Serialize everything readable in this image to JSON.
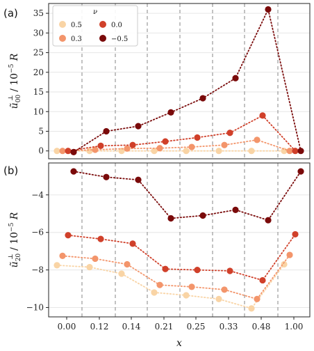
{
  "chart_data": {
    "type": "scatter",
    "xlabel": "x",
    "x_categories": [
      "0.00",
      "0.12",
      "0.14",
      "0.21",
      "0.25",
      "0.33",
      "0.48",
      "1.00"
    ],
    "legend": {
      "title": "ν",
      "placement": "top-left",
      "columns": 2
    },
    "series_styles": [
      {
        "name": "0.5",
        "color": "#f9d4a5"
      },
      {
        "name": "0.3",
        "color": "#f3956b"
      },
      {
        "name": "0.0",
        "color": "#d0402a"
      },
      {
        "name": "−0.5",
        "color": "#7a0a0a"
      }
    ],
    "panels": [
      {
        "label": "(a)",
        "ylabel_main": "ũ",
        "ylabel_sub": "00",
        "ylabel_sup": "⊥",
        "ylabel_tail": " / 10",
        "ylabel_exp": "−5",
        "ylabel_end": " R",
        "ylim": [
          -2,
          37.5
        ],
        "yticks": [
          0,
          5,
          10,
          15,
          20,
          25,
          30,
          35
        ],
        "grid": true,
        "series": [
          {
            "name": "0.5",
            "values": [
              0.0,
              0.0,
              0.0,
              0.0,
              0.0,
              0.0,
              0.0,
              0.0
            ]
          },
          {
            "name": "0.3",
            "values": [
              0.0,
              0.3,
              0.6,
              0.7,
              1.0,
              1.5,
              2.8,
              0.0
            ]
          },
          {
            "name": "0.0",
            "values": [
              0.0,
              1.3,
              1.5,
              2.4,
              3.4,
              4.6,
              9.0,
              0.0
            ]
          },
          {
            "name": "−0.5",
            "values": [
              -0.3,
              5.0,
              6.3,
              9.8,
              13.4,
              18.5,
              36.0,
              0.0
            ]
          }
        ]
      },
      {
        "label": "(b)",
        "ylabel_main": "ũ",
        "ylabel_sub": "20",
        "ylabel_sup": "⊥",
        "ylabel_tail": " / 10",
        "ylabel_exp": "−5",
        "ylabel_end": " R",
        "ylim": [
          -10.5,
          -2.3
        ],
        "yticks": [
          -10,
          -8,
          -6,
          -4
        ],
        "grid": true,
        "series": [
          {
            "name": "0.5",
            "values": [
              -7.75,
              -7.85,
              -8.2,
              -9.2,
              -9.35,
              -9.55,
              -10.05,
              -7.7
            ]
          },
          {
            "name": "0.3",
            "values": [
              -7.25,
              -7.4,
              -7.7,
              -8.8,
              -8.9,
              -9.05,
              -9.55,
              -7.2
            ]
          },
          {
            "name": "0.0",
            "values": [
              -6.15,
              -6.35,
              -6.6,
              -7.95,
              -8.0,
              -8.05,
              -8.55,
              -6.1
            ]
          },
          {
            "name": "−0.5",
            "values": [
              -2.75,
              -3.05,
              -3.2,
              -5.25,
              -5.1,
              -4.8,
              -5.35,
              -2.75
            ]
          }
        ]
      }
    ]
  }
}
